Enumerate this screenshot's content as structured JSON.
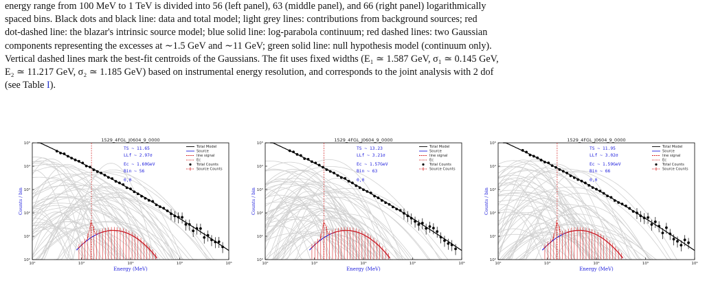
{
  "caption": {
    "line1": "energy range from 100 MeV to 1 TeV is divided into 56 (left panel), 63 (middle panel), and 66 (right panel) logarithmically",
    "line2": "spaced bins. Black dots and black line: data and total model; light grey lines: contributions from background sources; red",
    "line3": "dot-dashed line: the blazar's intrinsic source model; blue solid line: log-parabola continuum; red dashed lines: two Gaussian",
    "line4": "components representing the excesses at ∼1.5 GeV and ∼11 GeV; green solid line: null hypothesis model (continuum only).",
    "line5": "Vertical dashed lines mark the best-fit centroids of the Gaussians. The fit uses fixed widths (E₁ ≃ 1.587 GeV, σ₁ ≃ 0.145 GeV,",
    "line6": "E₂ ≃ 11.217 GeV, σ₂ ≃ 1.185 GeV) based on instrumental energy resolution, and corresponds to the joint analysis with 2 dof",
    "line7a": "(see Table ",
    "line7ref": "I",
    "line7b": ")."
  },
  "panels": [
    {
      "title": "1529_4FGL_J0604_9_0000",
      "annotations": [
        "TS ~ 11.65",
        "LLf ~ 2.97σ",
        "Ec ~ 1.60GeV",
        "Bin ~ 56",
        "0,0"
      ],
      "xlabel": "Energy (MeV)",
      "ylabel": "Counts / bin",
      "peak_index": 0
    },
    {
      "title": "1529_4FGL_J0604_9_0000",
      "annotations": [
        "TS ~ 13.23",
        "LLf ~ 3.21σ",
        "Ec ~ 1.57GeV",
        "Bin ~ 63",
        "0,0"
      ],
      "xlabel": "Energy (MeV)",
      "ylabel": "Counts / bin",
      "peak_index": 1
    },
    {
      "title": "1529_4FGL_J0604_9_0000",
      "annotations": [
        "TS ~ 11.95",
        "LLf ~ 3.02σ",
        "Ec ~ 1.59GeV",
        "Bin ~ 66",
        "0,0"
      ],
      "xlabel": "Energy (MeV)",
      "ylabel": "Counts / bin",
      "peak_index": 2
    }
  ],
  "legend": [
    "Total Model",
    "Source",
    "line signal",
    "Ec",
    "Total Counts",
    "Source Counts"
  ],
  "x_ticks": [
    "10²",
    "10³",
    "10⁴",
    "10⁵",
    "10⁶"
  ],
  "y_ticks": [
    "10⁰",
    "10¹",
    "10²",
    "10³",
    "10⁴",
    "10⁵"
  ],
  "colors": {
    "total": "#000000",
    "source": "#1a1adc",
    "line": "#d42020",
    "background": "#d0d0d0"
  },
  "chart_data": [
    {
      "type": "line",
      "title": "1529_4FGL_J0604_9_0000",
      "xlabel": "Energy (MeV)",
      "ylabel": "Counts / bin",
      "x_scale": "log",
      "y_scale": "log",
      "xlim": [
        100,
        1000000
      ],
      "ylim": [
        1,
        100000
      ],
      "Ec_GeV": 1.6,
      "bins": 56
    },
    {
      "type": "line",
      "title": "1529_4FGL_J0604_9_0000",
      "xlabel": "Energy (MeV)",
      "ylabel": "Counts / bin",
      "x_scale": "log",
      "y_scale": "log",
      "xlim": [
        100,
        1000000
      ],
      "ylim": [
        1,
        100000
      ],
      "Ec_GeV": 1.57,
      "bins": 63
    },
    {
      "type": "line",
      "title": "1529_4FGL_J0604_9_0000",
      "xlabel": "Energy (MeV)",
      "ylabel": "Counts / bin",
      "x_scale": "log",
      "y_scale": "log",
      "xlim": [
        100,
        1000000
      ],
      "ylim": [
        1,
        100000
      ],
      "Ec_GeV": 1.59,
      "bins": 66
    }
  ]
}
